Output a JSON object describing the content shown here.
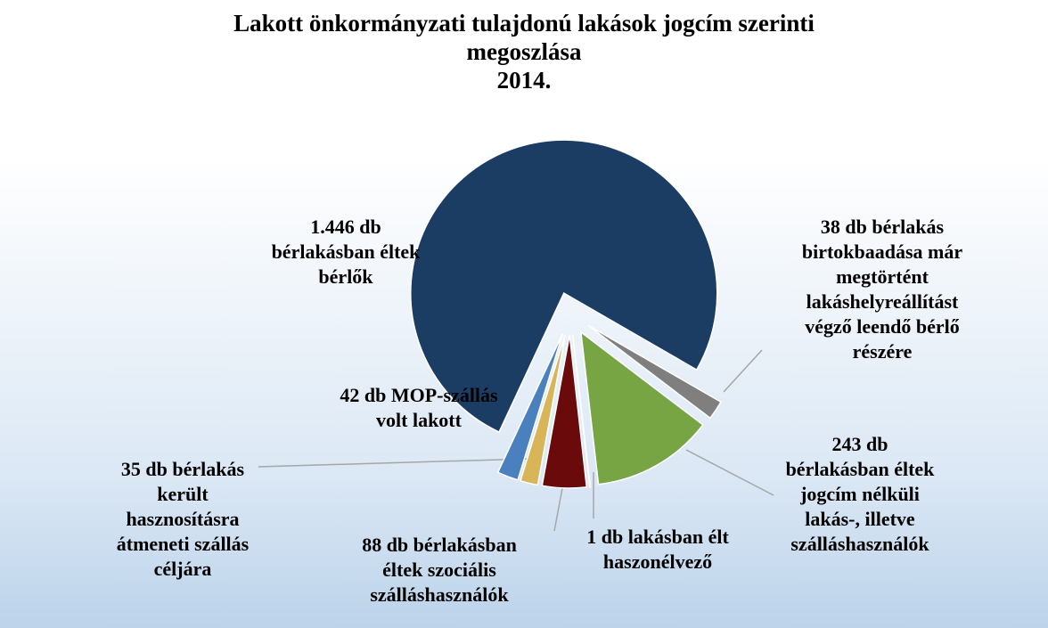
{
  "chart_data": {
    "type": "pie",
    "title": "Lakott önkormányzati tulajdonú lakások jogcím szerinti\nmegoszlása\n2014.",
    "values": [
      1446,
      38,
      243,
      1,
      88,
      35,
      42
    ],
    "value_labels": [
      "1.446 db\nbérlakásban éltek\nbérlők",
      "38 db bérlakás\nbirtokbaadása már\nmegtörtént\nlakáshelyreállítást\nvégző leendő bérlő\nrészére",
      "243 db\nbérlakásban éltek\njogcím nélküli\nlakás-, illetve\nszálláshasználók",
      "1 db lakásban élt\nhaszonélvező",
      "88 db bérlakásban\néltek szociális\nszálláshasználók",
      "35 db bérlakás\nkerült\nhasznosításra\nátmeneti szállás\ncéljára",
      "42 db MOP-szállás\nvolt lakott"
    ],
    "colors": [
      "#1c3d63",
      "#7f7f7f",
      "#77a543",
      "#f2f2f2",
      "#6a0a0a",
      "#d9b55a",
      "#4a80bd"
    ]
  }
}
